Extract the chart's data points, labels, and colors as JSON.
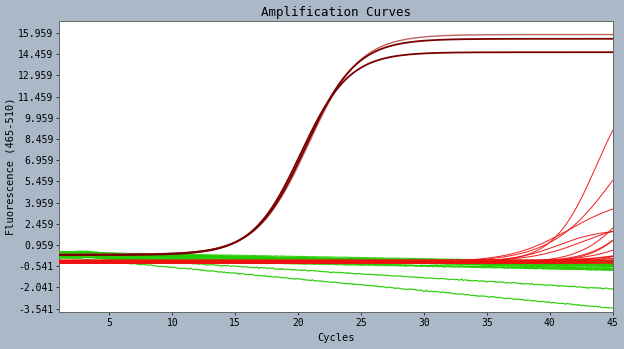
{
  "title": "Amplification Curves",
  "xlabel": "Cycles",
  "ylabel": "Fluorescence (465-510)",
  "xlim": [
    1,
    45
  ],
  "ylim": [
    -3.8,
    16.8
  ],
  "yticks": [
    -3.541,
    -2.041,
    -0.541,
    0.959,
    2.459,
    3.959,
    5.459,
    6.959,
    8.459,
    9.959,
    11.459,
    12.959,
    14.459,
    15.959
  ],
  "xticks": [
    5,
    10,
    15,
    20,
    25,
    30,
    35,
    40,
    45
  ],
  "background_color": "#aab8c8",
  "plot_bg_color": "#ffffff",
  "title_fontsize": 9,
  "axis_fontsize": 7.5,
  "tick_fontsize": 7,
  "dark_red_color": "#7a0000",
  "red_color": "#ee1111",
  "green_color": "#22cc00"
}
